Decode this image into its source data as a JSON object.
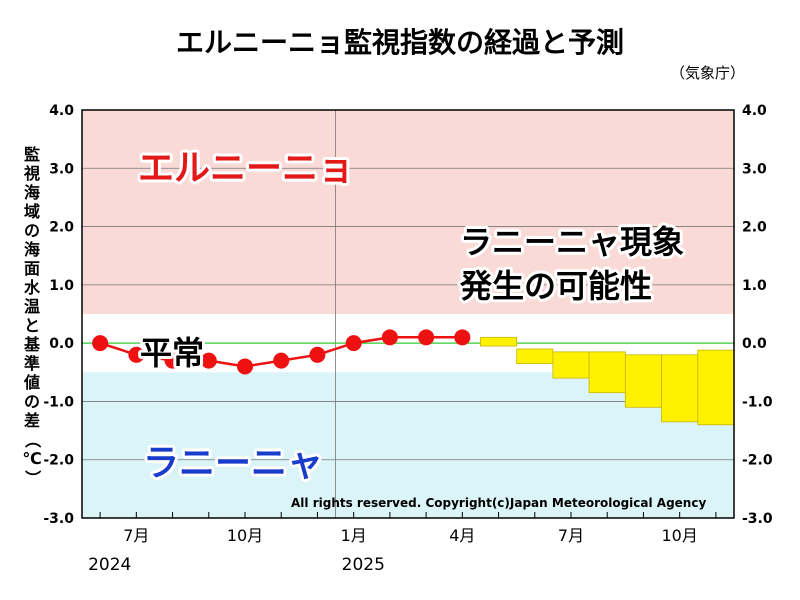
{
  "title": "エルニーニョ監視指数の経過と予測",
  "source": "（気象庁）",
  "copyright": "All rights reserved. Copyright(c)Japan Meteorological Agency",
  "chart_data": {
    "type": "line",
    "ylabel": "監視海域の海面水温と基準値の差（℃）",
    "ylim": [
      -3.0,
      4.0
    ],
    "y_ticks": [
      "4.0",
      "3.0",
      "2.0",
      "1.0",
      "0.0",
      "-1.0",
      "-2.0",
      "-3.0"
    ],
    "x_ticks": [
      {
        "month": 7,
        "label": "7月"
      },
      {
        "month": 10,
        "label": "10月"
      },
      {
        "month": 13,
        "label": "1月"
      },
      {
        "month": 16,
        "label": "4月"
      },
      {
        "month": 19,
        "label": "7月"
      },
      {
        "month": 22,
        "label": "10月"
      }
    ],
    "year_labels": [
      {
        "month": 6,
        "label": "2024"
      },
      {
        "month": 13,
        "label": "2025"
      }
    ],
    "series": [
      {
        "kind": "observed",
        "months": [
          6,
          7,
          8,
          9,
          10,
          11,
          12,
          13,
          14,
          15,
          16
        ],
        "values": [
          0.0,
          -0.2,
          -0.3,
          -0.3,
          -0.4,
          -0.3,
          -0.2,
          0.0,
          0.1,
          0.1,
          0.1
        ]
      }
    ],
    "forecast_ranges": [
      {
        "month": 17,
        "low": -0.05,
        "high": 0.1
      },
      {
        "month": 18,
        "low": -0.35,
        "high": -0.1
      },
      {
        "month": 19,
        "low": -0.6,
        "high": -0.15
      },
      {
        "month": 20,
        "low": -0.85,
        "high": -0.15
      },
      {
        "month": 21,
        "low": -1.1,
        "high": -0.2
      },
      {
        "month": 22,
        "low": -1.35,
        "high": -0.2
      },
      {
        "month": 23,
        "low": -1.4,
        "high": -0.12
      }
    ],
    "thresholds": {
      "el_nino": 0.5,
      "la_nina": -0.5
    },
    "colors": {
      "el_nino_zone": "#fadad6",
      "la_nina_zone": "#dbf4f7",
      "observed": "#ee1111",
      "forecast": "#fff200",
      "forecast_edge": "#c8b400",
      "zero_line": "#33cc33",
      "el_nino_text": "#e31919",
      "la_nina_text": "#1a3ccc"
    },
    "annotations": {
      "el_nino": "エルニーニョ",
      "normal": "平常",
      "la_nina": "ラニーニャ",
      "note_line1": "ラニーニャ現象",
      "note_line2": "発生の可能性"
    }
  }
}
